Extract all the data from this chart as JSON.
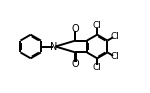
{
  "bg_color": "#ffffff",
  "bond_color": "#000000",
  "text_color": "#000000",
  "line_width": 1.4,
  "font_size": 6.5,
  "figsize": [
    1.5,
    0.93
  ],
  "dpi": 100,
  "xlim": [
    0,
    10
  ],
  "ylim": [
    0,
    6.2
  ]
}
